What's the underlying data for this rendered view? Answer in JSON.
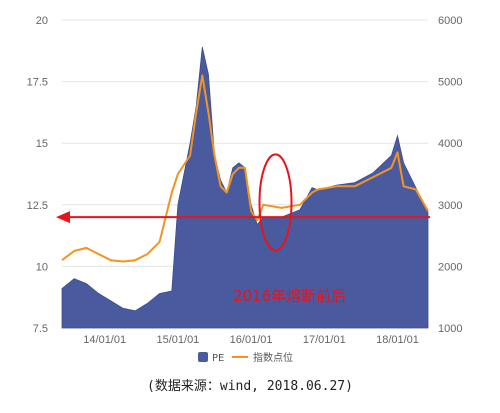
{
  "chart_data": {
    "type": "area+line",
    "x_ticks": [
      "14/01/01",
      "15/01/01",
      "16/01/01",
      "17/01/01",
      "18/01/01"
    ],
    "x_range": [
      "2013-06",
      "2018-06"
    ],
    "y_left_ticks": [
      "7.5",
      "10",
      "12.5",
      "15",
      "17.5",
      "20"
    ],
    "y_left_range": [
      7.5,
      20
    ],
    "y_right_ticks": [
      "1000",
      "2000",
      "3000",
      "4000",
      "5000",
      "6000"
    ],
    "y_right_range": [
      1000,
      6000
    ],
    "grid": "horizontal",
    "legend_position": "bottom",
    "series": [
      {
        "name": "PE",
        "kind": "area",
        "axis": "left",
        "color": "#4a5a9f",
        "x": [
          "2013-06",
          "2013-08",
          "2013-10",
          "2013-12",
          "2014-02",
          "2014-04",
          "2014-06",
          "2014-08",
          "2014-10",
          "2014-12",
          "2015-01",
          "2015-03",
          "2015-04",
          "2015-05",
          "2015-06",
          "2015-07",
          "2015-08",
          "2015-09",
          "2015-10",
          "2015-11",
          "2015-12",
          "2016-01",
          "2016-02",
          "2016-03",
          "2016-06",
          "2016-09",
          "2016-11",
          "2016-12",
          "2017-03",
          "2017-06",
          "2017-09",
          "2017-12",
          "2018-01",
          "2018-02",
          "2018-04",
          "2018-06"
        ],
        "values": [
          9.1,
          9.5,
          9.3,
          8.9,
          8.6,
          8.3,
          8.2,
          8.5,
          8.9,
          9.0,
          12.5,
          15.0,
          16.5,
          18.9,
          17.8,
          14.5,
          13.5,
          13.0,
          14.0,
          14.2,
          14.0,
          12.5,
          11.7,
          12.0,
          12.0,
          12.3,
          13.2,
          13.1,
          13.3,
          13.4,
          13.8,
          14.5,
          15.3,
          14.2,
          13.2,
          12.2
        ]
      },
      {
        "name": "指数点位",
        "kind": "line",
        "axis": "right",
        "color": "#f39322",
        "x": [
          "2013-06",
          "2013-08",
          "2013-10",
          "2013-12",
          "2014-02",
          "2014-04",
          "2014-06",
          "2014-08",
          "2014-10",
          "2014-12",
          "2015-01",
          "2015-03",
          "2015-04",
          "2015-05",
          "2015-06",
          "2015-07",
          "2015-08",
          "2015-09",
          "2015-10",
          "2015-11",
          "2015-12",
          "2016-01",
          "2016-02",
          "2016-03",
          "2016-06",
          "2016-09",
          "2016-11",
          "2016-12",
          "2017-03",
          "2017-06",
          "2017-09",
          "2017-12",
          "2018-01",
          "2018-02",
          "2018-04",
          "2018-06"
        ],
        "values": [
          2100,
          2250,
          2300,
          2200,
          2100,
          2080,
          2100,
          2200,
          2400,
          3200,
          3500,
          3800,
          4500,
          5100,
          4500,
          3800,
          3300,
          3200,
          3500,
          3600,
          3600,
          2900,
          2750,
          3000,
          2950,
          3000,
          3200,
          3250,
          3300,
          3300,
          3450,
          3600,
          3850,
          3300,
          3250,
          2900
        ]
      }
    ],
    "reference_line": {
      "axis": "left",
      "value": 12.0,
      "color": "#e8131c",
      "label": "2016年熔断前后"
    }
  },
  "source_text": "(数据来源：wind, 2018.06.27)"
}
